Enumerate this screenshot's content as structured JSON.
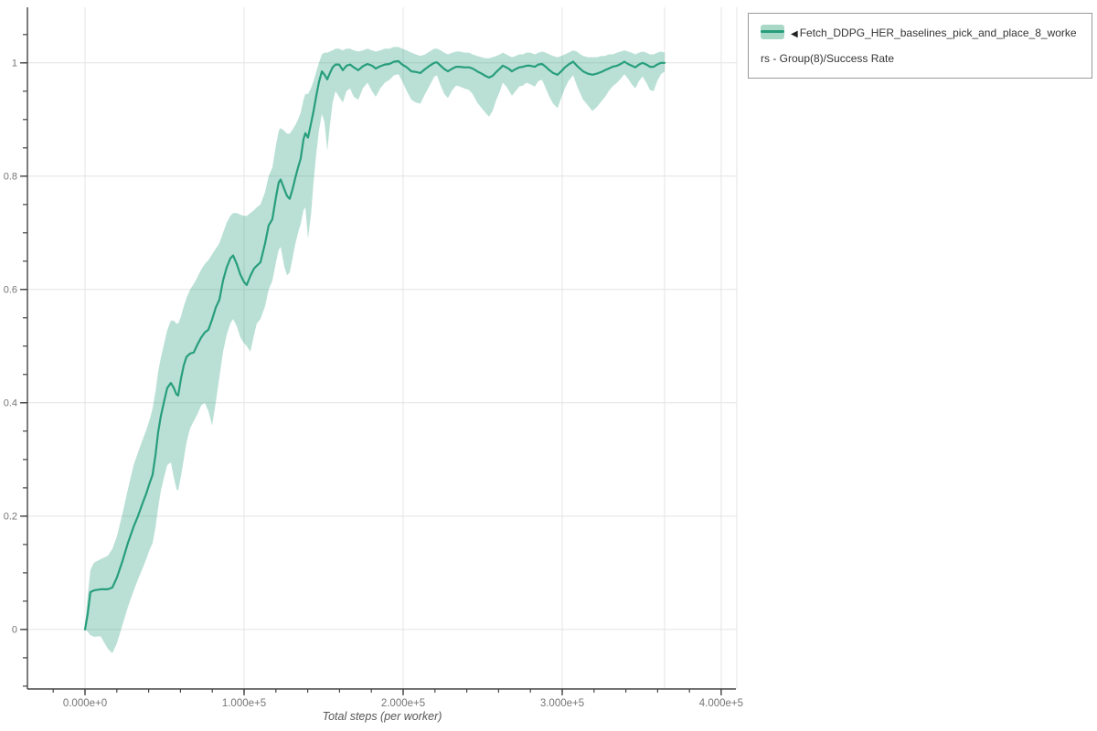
{
  "legend": {
    "marker": "◀",
    "label": "Fetch_DDPG_HER_baselines_pick_and_place_8_workers - Group(8)/Success Rate"
  },
  "chart_data": {
    "type": "line",
    "title": "",
    "xlabel": "Total steps (per worker)",
    "ylabel": "",
    "grid": true,
    "legend_position": "top-right",
    "xlim": [
      -36200,
      409800
    ],
    "ylim": [
      -0.105,
      1.098
    ],
    "x_major_ticks": [
      0,
      100000,
      200000,
      300000,
      400000
    ],
    "x_tick_labels": [
      "0.000e+0",
      "1.000e+5",
      "2.000e+5",
      "3.000e+5",
      "4.000e+5"
    ],
    "x_minor_step": 20000,
    "y_major_ticks": [
      0,
      0.2,
      0.4,
      0.6,
      0.8,
      1
    ],
    "y_tick_labels": [
      "0",
      "0.2",
      "0.4",
      "0.6",
      "0.8",
      "1"
    ],
    "y_minor_step": 0.05,
    "extra_vgrid": [
      364400,
      409800
    ],
    "colors": {
      "line": "#279e7c",
      "band": "rgba(39,158,124,0.32)",
      "grid": "#e4e4e4",
      "axis": "#444444",
      "tick_label": "#757575",
      "axis_title": "#555555"
    },
    "series": [
      {
        "name": "Fetch_DDPG_HER_baselines_pick_and_place_8_workers - Group(8)/Success Rate",
        "x": [
          0,
          1700,
          3400,
          5700,
          9800,
          14400,
          17200,
          20100,
          23600,
          27000,
          30500,
          33300,
          36200,
          38500,
          40800,
          42500,
          44300,
          46000,
          47700,
          50000,
          51700,
          54000,
          55700,
          57500,
          58600,
          60300,
          62100,
          63800,
          66100,
          68400,
          70700,
          73000,
          75300,
          77600,
          79900,
          82200,
          84500,
          86800,
          89100,
          91400,
          93100,
          95400,
          97700,
          100000,
          101700,
          104000,
          106300,
          108000,
          110300,
          113200,
          115500,
          117800,
          120100,
          121800,
          123000,
          125300,
          127000,
          128700,
          130500,
          132200,
          133900,
          135600,
          137400,
          138500,
          140200,
          142000,
          143700,
          145400,
          147100,
          148900,
          150600,
          152300,
          154000,
          155700,
          157500,
          159800,
          162100,
          164400,
          166700,
          169000,
          171800,
          174700,
          177600,
          180500,
          182800,
          185600,
          188500,
          191400,
          194300,
          197100,
          199400,
          202300,
          205200,
          208000,
          210900,
          213800,
          216700,
          219500,
          221300,
          223600,
          225900,
          228200,
          231000,
          233300,
          235600,
          238500,
          241400,
          243700,
          246600,
          249400,
          251700,
          254000,
          256300,
          258600,
          260900,
          262600,
          264900,
          266700,
          268400,
          270700,
          273000,
          275300,
          277600,
          279900,
          282800,
          285100,
          287400,
          289700,
          292000,
          294300,
          297100,
          299400,
          301700,
          304000,
          306900,
          309200,
          311500,
          313200,
          316100,
          319000,
          321800,
          324700,
          327000,
          329300,
          331600,
          334500,
          336800,
          339100,
          341400,
          343700,
          346000,
          348300,
          350600,
          352900,
          355200,
          357500,
          359800,
          362100,
          364400
        ],
        "y": [
          0.0,
          0.027,
          0.066,
          0.069,
          0.071,
          0.071,
          0.074,
          0.092,
          0.121,
          0.153,
          0.181,
          0.2,
          0.223,
          0.24,
          0.26,
          0.273,
          0.308,
          0.348,
          0.377,
          0.406,
          0.426,
          0.435,
          0.427,
          0.415,
          0.413,
          0.442,
          0.466,
          0.481,
          0.487,
          0.489,
          0.503,
          0.515,
          0.524,
          0.529,
          0.547,
          0.568,
          0.582,
          0.616,
          0.639,
          0.655,
          0.66,
          0.645,
          0.626,
          0.613,
          0.608,
          0.624,
          0.637,
          0.642,
          0.648,
          0.681,
          0.713,
          0.724,
          0.763,
          0.789,
          0.794,
          0.777,
          0.765,
          0.76,
          0.777,
          0.797,
          0.815,
          0.831,
          0.865,
          0.876,
          0.868,
          0.892,
          0.915,
          0.942,
          0.966,
          0.985,
          0.979,
          0.971,
          0.982,
          0.992,
          0.997,
          0.997,
          0.987,
          0.995,
          0.997,
          0.992,
          0.987,
          0.994,
          0.998,
          0.995,
          0.99,
          0.994,
          0.997,
          0.998,
          1.002,
          1.003,
          0.997,
          0.992,
          0.985,
          0.984,
          0.982,
          0.989,
          0.995,
          1.0,
          1.001,
          0.995,
          0.989,
          0.985,
          0.99,
          0.993,
          0.993,
          0.992,
          0.992,
          0.99,
          0.985,
          0.981,
          0.977,
          0.974,
          0.977,
          0.984,
          0.99,
          0.995,
          0.992,
          0.989,
          0.985,
          0.989,
          0.992,
          0.993,
          0.995,
          0.995,
          0.993,
          0.997,
          0.998,
          0.993,
          0.987,
          0.982,
          0.979,
          0.985,
          0.992,
          0.997,
          1.002,
          0.995,
          0.989,
          0.985,
          0.981,
          0.979,
          0.981,
          0.984,
          0.987,
          0.99,
          0.993,
          0.995,
          0.998,
          1.002,
          0.998,
          0.995,
          0.992,
          0.997,
          1.0,
          0.997,
          0.993,
          0.993,
          0.997,
          1.0,
          1.0
        ],
        "band_lower": [
          0.0,
          -0.004,
          -0.01,
          -0.013,
          -0.012,
          -0.034,
          -0.042,
          -0.024,
          0.008,
          0.04,
          0.068,
          0.088,
          0.108,
          0.124,
          0.142,
          0.152,
          0.18,
          0.215,
          0.245,
          0.272,
          0.29,
          0.295,
          0.27,
          0.248,
          0.245,
          0.27,
          0.3,
          0.33,
          0.355,
          0.368,
          0.38,
          0.395,
          0.4,
          0.385,
          0.36,
          0.4,
          0.445,
          0.49,
          0.52,
          0.54,
          0.548,
          0.535,
          0.515,
          0.505,
          0.5,
          0.49,
          0.52,
          0.54,
          0.548,
          0.57,
          0.6,
          0.615,
          0.648,
          0.67,
          0.675,
          0.64,
          0.625,
          0.63,
          0.655,
          0.68,
          0.7,
          0.715,
          0.74,
          0.745,
          0.69,
          0.73,
          0.79,
          0.84,
          0.88,
          0.91,
          0.895,
          0.845,
          0.89,
          0.93,
          0.95,
          0.94,
          0.93,
          0.95,
          0.955,
          0.94,
          0.935,
          0.955,
          0.965,
          0.95,
          0.94,
          0.955,
          0.965,
          0.97,
          0.978,
          0.98,
          0.968,
          0.95,
          0.935,
          0.93,
          0.928,
          0.945,
          0.96,
          0.975,
          0.978,
          0.96,
          0.945,
          0.938,
          0.952,
          0.96,
          0.958,
          0.955,
          0.952,
          0.945,
          0.93,
          0.92,
          0.912,
          0.905,
          0.915,
          0.935,
          0.95,
          0.965,
          0.958,
          0.95,
          0.942,
          0.95,
          0.958,
          0.96,
          0.965,
          0.962,
          0.958,
          0.968,
          0.97,
          0.955,
          0.94,
          0.928,
          0.92,
          0.938,
          0.955,
          0.968,
          0.978,
          0.96,
          0.945,
          0.935,
          0.925,
          0.915,
          0.922,
          0.932,
          0.94,
          0.95,
          0.958,
          0.965,
          0.972,
          0.98,
          0.972,
          0.962,
          0.955,
          0.968,
          0.976,
          0.965,
          0.952,
          0.95,
          0.968,
          0.98,
          0.985
        ],
        "band_upper": [
          0.004,
          0.06,
          0.105,
          0.118,
          0.124,
          0.13,
          0.142,
          0.165,
          0.205,
          0.248,
          0.29,
          0.312,
          0.335,
          0.352,
          0.372,
          0.39,
          0.42,
          0.455,
          0.48,
          0.508,
          0.528,
          0.545,
          0.545,
          0.54,
          0.54,
          0.552,
          0.57,
          0.585,
          0.6,
          0.61,
          0.622,
          0.635,
          0.645,
          0.652,
          0.662,
          0.672,
          0.682,
          0.7,
          0.718,
          0.73,
          0.735,
          0.735,
          0.732,
          0.73,
          0.73,
          0.735,
          0.74,
          0.745,
          0.75,
          0.772,
          0.8,
          0.815,
          0.855,
          0.88,
          0.885,
          0.88,
          0.875,
          0.875,
          0.882,
          0.89,
          0.9,
          0.912,
          0.935,
          0.945,
          0.945,
          0.955,
          0.968,
          0.985,
          1.0,
          1.015,
          1.018,
          1.018,
          1.02,
          1.022,
          1.025,
          1.025,
          1.022,
          1.025,
          1.025,
          1.022,
          1.02,
          1.022,
          1.025,
          1.022,
          1.02,
          1.022,
          1.025,
          1.025,
          1.028,
          1.028,
          1.025,
          1.022,
          1.018,
          1.015,
          1.012,
          1.015,
          1.02,
          1.025,
          1.025,
          1.022,
          1.018,
          1.015,
          1.018,
          1.02,
          1.02,
          1.018,
          1.018,
          1.015,
          1.012,
          1.01,
          1.008,
          1.008,
          1.01,
          1.012,
          1.015,
          1.018,
          1.015,
          1.012,
          1.01,
          1.012,
          1.015,
          1.015,
          1.018,
          1.018,
          1.015,
          1.018,
          1.02,
          1.018,
          1.015,
          1.012,
          1.01,
          1.012,
          1.015,
          1.018,
          1.022,
          1.02,
          1.015,
          1.012,
          1.01,
          1.01,
          1.01,
          1.012,
          1.012,
          1.015,
          1.015,
          1.018,
          1.02,
          1.022,
          1.02,
          1.018,
          1.015,
          1.018,
          1.02,
          1.018,
          1.015,
          1.015,
          1.018,
          1.02,
          1.018
        ]
      }
    ]
  }
}
